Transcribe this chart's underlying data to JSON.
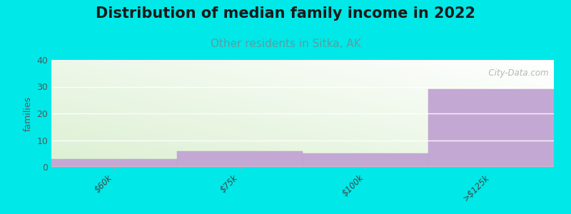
{
  "title": "Distribution of median family income in 2022",
  "subtitle": "Other residents in Sitka, AK",
  "categories": [
    "$60k",
    "$75k",
    "$100k",
    ">$125k"
  ],
  "values": [
    3,
    6,
    5,
    29
  ],
  "bar_color": "#c4a8d4",
  "bar_edge_color": "#b8a0cc",
  "bg_outer": "#00e8e8",
  "ylabel": "families",
  "ylim": [
    0,
    40
  ],
  "yticks": [
    0,
    10,
    20,
    30,
    40
  ],
  "title_fontsize": 15,
  "subtitle_fontsize": 11,
  "subtitle_color": "#5a9ea0",
  "watermark": "  City-Data.com",
  "watermark_color": "#aaaaaa",
  "grid_color": "#cccccc"
}
